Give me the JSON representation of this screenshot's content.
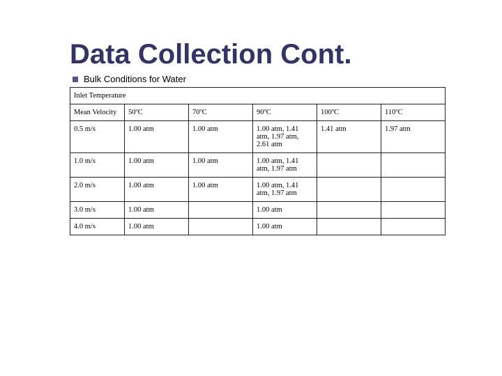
{
  "title": "Data Collection Cont.",
  "subtitle": "Bulk Conditions for Water",
  "table": {
    "spanner": "Inlet Temperature",
    "row_header_label": "Mean Velocity",
    "column_headers": [
      "50ºC",
      "70ºC",
      "90ºC",
      "100ºC",
      "110ºC"
    ],
    "rows": [
      {
        "label": "0.5 m/s",
        "cells": [
          "1.00 atm",
          "1.00 atm",
          "1.00 atm, 1.41 atm, 1.97 atm, 2.61 atm",
          "1.41 atm",
          "1.97 atm"
        ]
      },
      {
        "label": "1.0 m/s",
        "cells": [
          "1.00 atm",
          "1.00 atm",
          "1.00 atm, 1.41 atm, 1.97 atm",
          "",
          ""
        ]
      },
      {
        "label": "2.0 m/s",
        "cells": [
          "1.00 atm",
          "1.00 atm",
          "1.00 atm, 1.41 atm, 1.97 atm",
          "",
          ""
        ]
      },
      {
        "label": "3.0 m/s",
        "cells": [
          "1.00 atm",
          "",
          "1.00 atm",
          "",
          ""
        ]
      },
      {
        "label": "4.0 m/s",
        "cells": [
          "1.00 atm",
          "",
          "1.00 atm",
          "",
          ""
        ]
      }
    ]
  },
  "colors": {
    "title": "#333366",
    "bullet": "#555588",
    "text": "#000000",
    "border": "#222222",
    "background": "#ffffff"
  },
  "fonts": {
    "title_family": "Comic Sans MS",
    "title_size_pt": 30,
    "subtitle_family": "Verdana",
    "subtitle_size_pt": 10,
    "table_family": "Times New Roman",
    "table_size_pt": 8
  }
}
